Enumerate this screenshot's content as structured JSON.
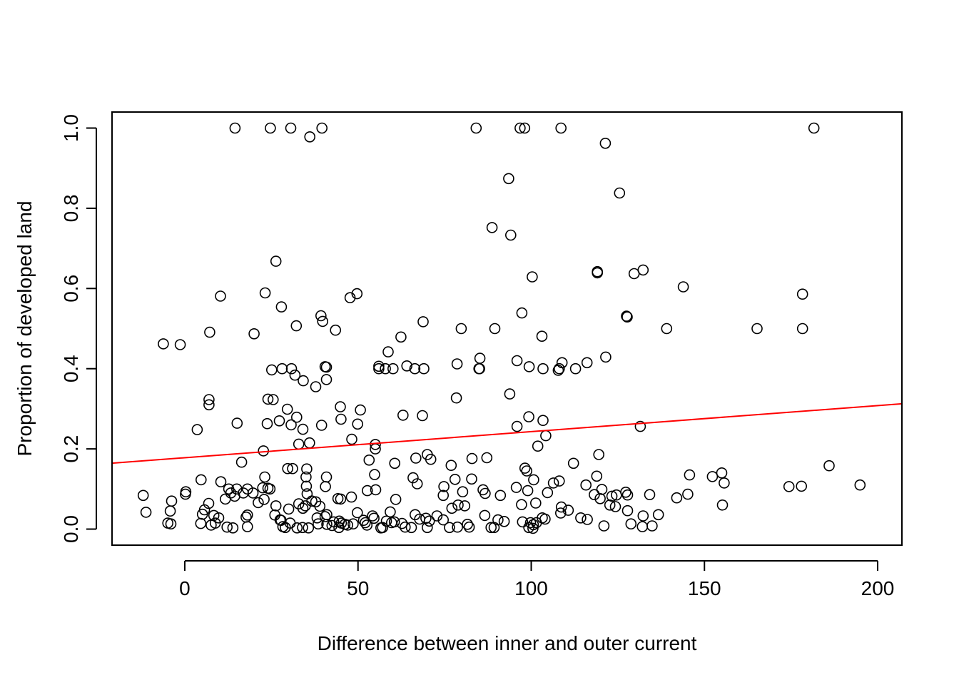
{
  "chart_data": {
    "type": "scatter",
    "title": "",
    "xlabel": "Difference between inner and outer current",
    "ylabel": "Proportion of developed land",
    "xlim": [
      -21,
      207
    ],
    "ylim": [
      -0.04,
      1.04
    ],
    "xticks": [
      0,
      50,
      100,
      150,
      200
    ],
    "xtick_labels": [
      "0",
      "50",
      "100",
      "150",
      "200"
    ],
    "yticks": [
      0.0,
      0.2,
      0.4,
      0.6,
      0.8,
      1.0
    ],
    "ytick_labels": [
      "0.0",
      "0.2",
      "0.4",
      "0.6",
      "0.8",
      "1.0"
    ],
    "grid": false,
    "point_color": "#000000",
    "trend_color": "#ff0000",
    "trend_line": {
      "intercept": 0.178,
      "slope": 0.00065
    },
    "points": [
      [
        14.5,
        1.0
      ],
      [
        24.7,
        1.0
      ],
      [
        30.6,
        1.0
      ],
      [
        39.6,
        1.0
      ],
      [
        84.1,
        1.0
      ],
      [
        96.8,
        1.0
      ],
      [
        98.1,
        1.0
      ],
      [
        108.6,
        1.0
      ],
      [
        181.6,
        1.0
      ],
      [
        36.1,
        0.978
      ],
      [
        121.4,
        0.962
      ],
      [
        93.5,
        0.874
      ],
      [
        125.5,
        0.838
      ],
      [
        88.7,
        0.752
      ],
      [
        94.1,
        0.733
      ],
      [
        26.3,
        0.668
      ],
      [
        132.3,
        0.646
      ],
      [
        119.1,
        0.642
      ],
      [
        119.1,
        0.639
      ],
      [
        129.7,
        0.637
      ],
      [
        100.3,
        0.629
      ],
      [
        143.9,
        0.604
      ],
      [
        23.2,
        0.589
      ],
      [
        49.7,
        0.587
      ],
      [
        10.3,
        0.581
      ],
      [
        178.3,
        0.586
      ],
      [
        47.7,
        0.577
      ],
      [
        27.9,
        0.554
      ],
      [
        97.3,
        0.539
      ],
      [
        39.3,
        0.532
      ],
      [
        127.7,
        0.529
      ],
      [
        127.5,
        0.531
      ],
      [
        39.8,
        0.518
      ],
      [
        68.8,
        0.517
      ],
      [
        32.2,
        0.507
      ],
      [
        7.2,
        0.491
      ],
      [
        20.0,
        0.487
      ],
      [
        43.5,
        0.496
      ],
      [
        79.8,
        0.5
      ],
      [
        89.5,
        0.5
      ],
      [
        139.1,
        0.5
      ],
      [
        165.2,
        0.5
      ],
      [
        178.3,
        0.5
      ],
      [
        62.4,
        0.479
      ],
      [
        103.1,
        0.481
      ],
      [
        -6.2,
        0.462
      ],
      [
        -1.3,
        0.46
      ],
      [
        58.7,
        0.442
      ],
      [
        85.2,
        0.426
      ],
      [
        121.5,
        0.429
      ],
      [
        95.9,
        0.42
      ],
      [
        108.9,
        0.415
      ],
      [
        116.1,
        0.415
      ],
      [
        78.6,
        0.412
      ],
      [
        40.9,
        0.404
      ],
      [
        40.5,
        0.405
      ],
      [
        56.0,
        0.406
      ],
      [
        64.1,
        0.407
      ],
      [
        99.4,
        0.405
      ],
      [
        25.1,
        0.397
      ],
      [
        28.1,
        0.4
      ],
      [
        30.8,
        0.4
      ],
      [
        56.0,
        0.4
      ],
      [
        57.9,
        0.4
      ],
      [
        60.1,
        0.4
      ],
      [
        66.4,
        0.4
      ],
      [
        69.0,
        0.4
      ],
      [
        84.9,
        0.4
      ],
      [
        85.1,
        0.4
      ],
      [
        103.4,
        0.4
      ],
      [
        107.8,
        0.396
      ],
      [
        108.1,
        0.4
      ],
      [
        112.8,
        0.4
      ],
      [
        31.8,
        0.384
      ],
      [
        34.2,
        0.37
      ],
      [
        40.9,
        0.373
      ],
      [
        37.8,
        0.355
      ],
      [
        93.8,
        0.337
      ],
      [
        78.4,
        0.327
      ],
      [
        7.0,
        0.323
      ],
      [
        24.0,
        0.324
      ],
      [
        25.5,
        0.323
      ],
      [
        7.0,
        0.31
      ],
      [
        44.9,
        0.305
      ],
      [
        50.7,
        0.297
      ],
      [
        29.6,
        0.299
      ],
      [
        63.0,
        0.284
      ],
      [
        68.6,
        0.283
      ],
      [
        99.3,
        0.28
      ],
      [
        32.3,
        0.279
      ],
      [
        45.1,
        0.274
      ],
      [
        27.3,
        0.27
      ],
      [
        103.4,
        0.271
      ],
      [
        15.1,
        0.264
      ],
      [
        23.8,
        0.263
      ],
      [
        30.7,
        0.26
      ],
      [
        39.5,
        0.259
      ],
      [
        49.9,
        0.262
      ],
      [
        95.9,
        0.256
      ],
      [
        131.5,
        0.256
      ],
      [
        3.6,
        0.248
      ],
      [
        34.1,
        0.249
      ],
      [
        104.2,
        0.233
      ],
      [
        48.2,
        0.224
      ],
      [
        32.9,
        0.212
      ],
      [
        36.0,
        0.215
      ],
      [
        55.0,
        0.211
      ],
      [
        101.9,
        0.207
      ],
      [
        55.0,
        0.2
      ],
      [
        22.7,
        0.195
      ],
      [
        71.0,
        0.174
      ],
      [
        70.0,
        0.186
      ],
      [
        119.5,
        0.186
      ],
      [
        16.4,
        0.167
      ],
      [
        53.2,
        0.172
      ],
      [
        60.6,
        0.164
      ],
      [
        82.9,
        0.176
      ],
      [
        87.2,
        0.178
      ],
      [
        66.7,
        0.177
      ],
      [
        112.2,
        0.164
      ],
      [
        186.0,
        0.158
      ],
      [
        76.9,
        0.159
      ],
      [
        29.7,
        0.151
      ],
      [
        31.1,
        0.151
      ],
      [
        35.2,
        0.15
      ],
      [
        98.2,
        0.152
      ],
      [
        98.7,
        0.145
      ],
      [
        54.8,
        0.136
      ],
      [
        118.9,
        0.132
      ],
      [
        145.7,
        0.135
      ],
      [
        155.0,
        0.14
      ],
      [
        152.3,
        0.131
      ],
      [
        65.9,
        0.128
      ],
      [
        82.8,
        0.125
      ],
      [
        78.0,
        0.124
      ],
      [
        100.7,
        0.123
      ],
      [
        23.1,
        0.13
      ],
      [
        35.0,
        0.13
      ],
      [
        40.9,
        0.13
      ],
      [
        4.7,
        0.123
      ],
      [
        10.4,
        0.118
      ],
      [
        108.1,
        0.12
      ],
      [
        106.4,
        0.115
      ],
      [
        115.8,
        0.11
      ],
      [
        155.7,
        0.115
      ],
      [
        67.1,
        0.113
      ],
      [
        194.9,
        0.11
      ],
      [
        174.4,
        0.106
      ],
      [
        178.0,
        0.107
      ],
      [
        35.1,
        0.107
      ],
      [
        40.6,
        0.106
      ],
      [
        18.1,
        0.1
      ],
      [
        15.0,
        0.1
      ],
      [
        24.6,
        0.1
      ],
      [
        12.7,
        0.1
      ],
      [
        22.5,
        0.103
      ],
      [
        24.0,
        0.102
      ],
      [
        52.7,
        0.096
      ],
      [
        55.1,
        0.098
      ],
      [
        74.8,
        0.106
      ],
      [
        95.7,
        0.104
      ],
      [
        99.0,
        0.096
      ],
      [
        120.4,
        0.099
      ],
      [
        0.3,
        0.093
      ],
      [
        0.2,
        0.087
      ],
      [
        -12.0,
        0.084
      ],
      [
        13.3,
        0.09
      ],
      [
        14.4,
        0.082
      ],
      [
        16.9,
        0.09
      ],
      [
        19.7,
        0.09
      ],
      [
        35.3,
        0.088
      ],
      [
        48.1,
        0.08
      ],
      [
        80.2,
        0.093
      ],
      [
        86.1,
        0.098
      ],
      [
        86.7,
        0.089
      ],
      [
        91.1,
        0.084
      ],
      [
        104.7,
        0.091
      ],
      [
        118.2,
        0.086
      ],
      [
        127.3,
        0.092
      ],
      [
        127.8,
        0.085
      ],
      [
        134.2,
        0.086
      ],
      [
        145.2,
        0.087
      ],
      [
        44.2,
        0.076
      ],
      [
        45.0,
        0.075
      ],
      [
        22.9,
        0.074
      ],
      [
        11.7,
        0.075
      ],
      [
        60.9,
        0.074
      ],
      [
        74.6,
        0.084
      ],
      [
        142.0,
        0.078
      ],
      [
        124.6,
        0.085
      ],
      [
        123.3,
        0.082
      ],
      [
        6.9,
        0.064
      ],
      [
        -3.8,
        0.07
      ],
      [
        21.2,
        0.066
      ],
      [
        26.3,
        0.058
      ],
      [
        32.9,
        0.063
      ],
      [
        34.8,
        0.058
      ],
      [
        36.7,
        0.07
      ],
      [
        37.8,
        0.068
      ],
      [
        39.0,
        0.057
      ],
      [
        77.1,
        0.052
      ],
      [
        78.9,
        0.06
      ],
      [
        80.8,
        0.058
      ],
      [
        97.2,
        0.061
      ],
      [
        101.3,
        0.065
      ],
      [
        108.7,
        0.055
      ],
      [
        110.7,
        0.047
      ],
      [
        119.9,
        0.076
      ],
      [
        122.7,
        0.06
      ],
      [
        124.3,
        0.056
      ],
      [
        155.2,
        0.06
      ],
      [
        5.7,
        0.048
      ],
      [
        -11.2,
        0.042
      ],
      [
        -4.2,
        0.045
      ],
      [
        30.0,
        0.05
      ],
      [
        34.1,
        0.052
      ],
      [
        41.0,
        0.036
      ],
      [
        49.8,
        0.041
      ],
      [
        59.3,
        0.043
      ],
      [
        66.5,
        0.036
      ],
      [
        69.6,
        0.027
      ],
      [
        72.8,
        0.033
      ],
      [
        86.6,
        0.034
      ],
      [
        103.2,
        0.028
      ],
      [
        108.5,
        0.04
      ],
      [
        114.3,
        0.028
      ],
      [
        116.2,
        0.024
      ],
      [
        127.8,
        0.046
      ],
      [
        132.3,
        0.033
      ],
      [
        136.7,
        0.036
      ],
      [
        5.1,
        0.037
      ],
      [
        8.4,
        0.034
      ],
      [
        9.8,
        0.028
      ],
      [
        18.1,
        0.035
      ],
      [
        17.7,
        0.03
      ],
      [
        26.0,
        0.035
      ],
      [
        27.5,
        0.023
      ],
      [
        38.2,
        0.028
      ],
      [
        40.5,
        0.031
      ],
      [
        44.6,
        0.02
      ],
      [
        51.6,
        0.022
      ],
      [
        54.2,
        0.033
      ],
      [
        54.6,
        0.027
      ],
      [
        60.5,
        0.018
      ],
      [
        62.7,
        0.014
      ],
      [
        67.8,
        0.025
      ],
      [
        74.6,
        0.023
      ],
      [
        92.2,
        0.019
      ],
      [
        90.4,
        0.023
      ],
      [
        97.5,
        0.018
      ],
      [
        104.0,
        0.025
      ],
      [
        -4.9,
        0.015
      ],
      [
        -4.0,
        0.013
      ],
      [
        4.6,
        0.014
      ],
      [
        7.6,
        0.01
      ],
      [
        8.8,
        0.015
      ],
      [
        12.2,
        0.005
      ],
      [
        13.9,
        0.003
      ],
      [
        18.1,
        0.006
      ],
      [
        28.3,
        0.006
      ],
      [
        29.0,
        0.004
      ],
      [
        30.4,
        0.015
      ],
      [
        32.4,
        0.003
      ],
      [
        34.0,
        0.004
      ],
      [
        35.7,
        0.003
      ],
      [
        38.5,
        0.013
      ],
      [
        41.0,
        0.012
      ],
      [
        42.5,
        0.009
      ],
      [
        44.5,
        0.004
      ],
      [
        46.2,
        0.012
      ],
      [
        47.0,
        0.01
      ],
      [
        48.6,
        0.013
      ],
      [
        52.6,
        0.01
      ],
      [
        56.6,
        0.003
      ],
      [
        57.1,
        0.004
      ],
      [
        59.7,
        0.016
      ],
      [
        63.6,
        0.005
      ],
      [
        65.4,
        0.004
      ],
      [
        70.0,
        0.004
      ],
      [
        76.4,
        0.004
      ],
      [
        78.7,
        0.005
      ],
      [
        82.1,
        0.005
      ],
      [
        88.4,
        0.004
      ],
      [
        89.3,
        0.004
      ],
      [
        99.3,
        0.004
      ],
      [
        100.5,
        0.002
      ],
      [
        100.6,
        0.011
      ],
      [
        101.5,
        0.016
      ],
      [
        121.0,
        0.008
      ],
      [
        128.8,
        0.013
      ],
      [
        132.1,
        0.006
      ],
      [
        134.9,
        0.008
      ],
      [
        27.8,
        0.022
      ],
      [
        43.0,
        0.018
      ],
      [
        45.2,
        0.015
      ],
      [
        52.1,
        0.016
      ],
      [
        58.2,
        0.02
      ],
      [
        70.6,
        0.02
      ],
      [
        81.6,
        0.012
      ],
      [
        99.8,
        0.016
      ]
    ]
  }
}
